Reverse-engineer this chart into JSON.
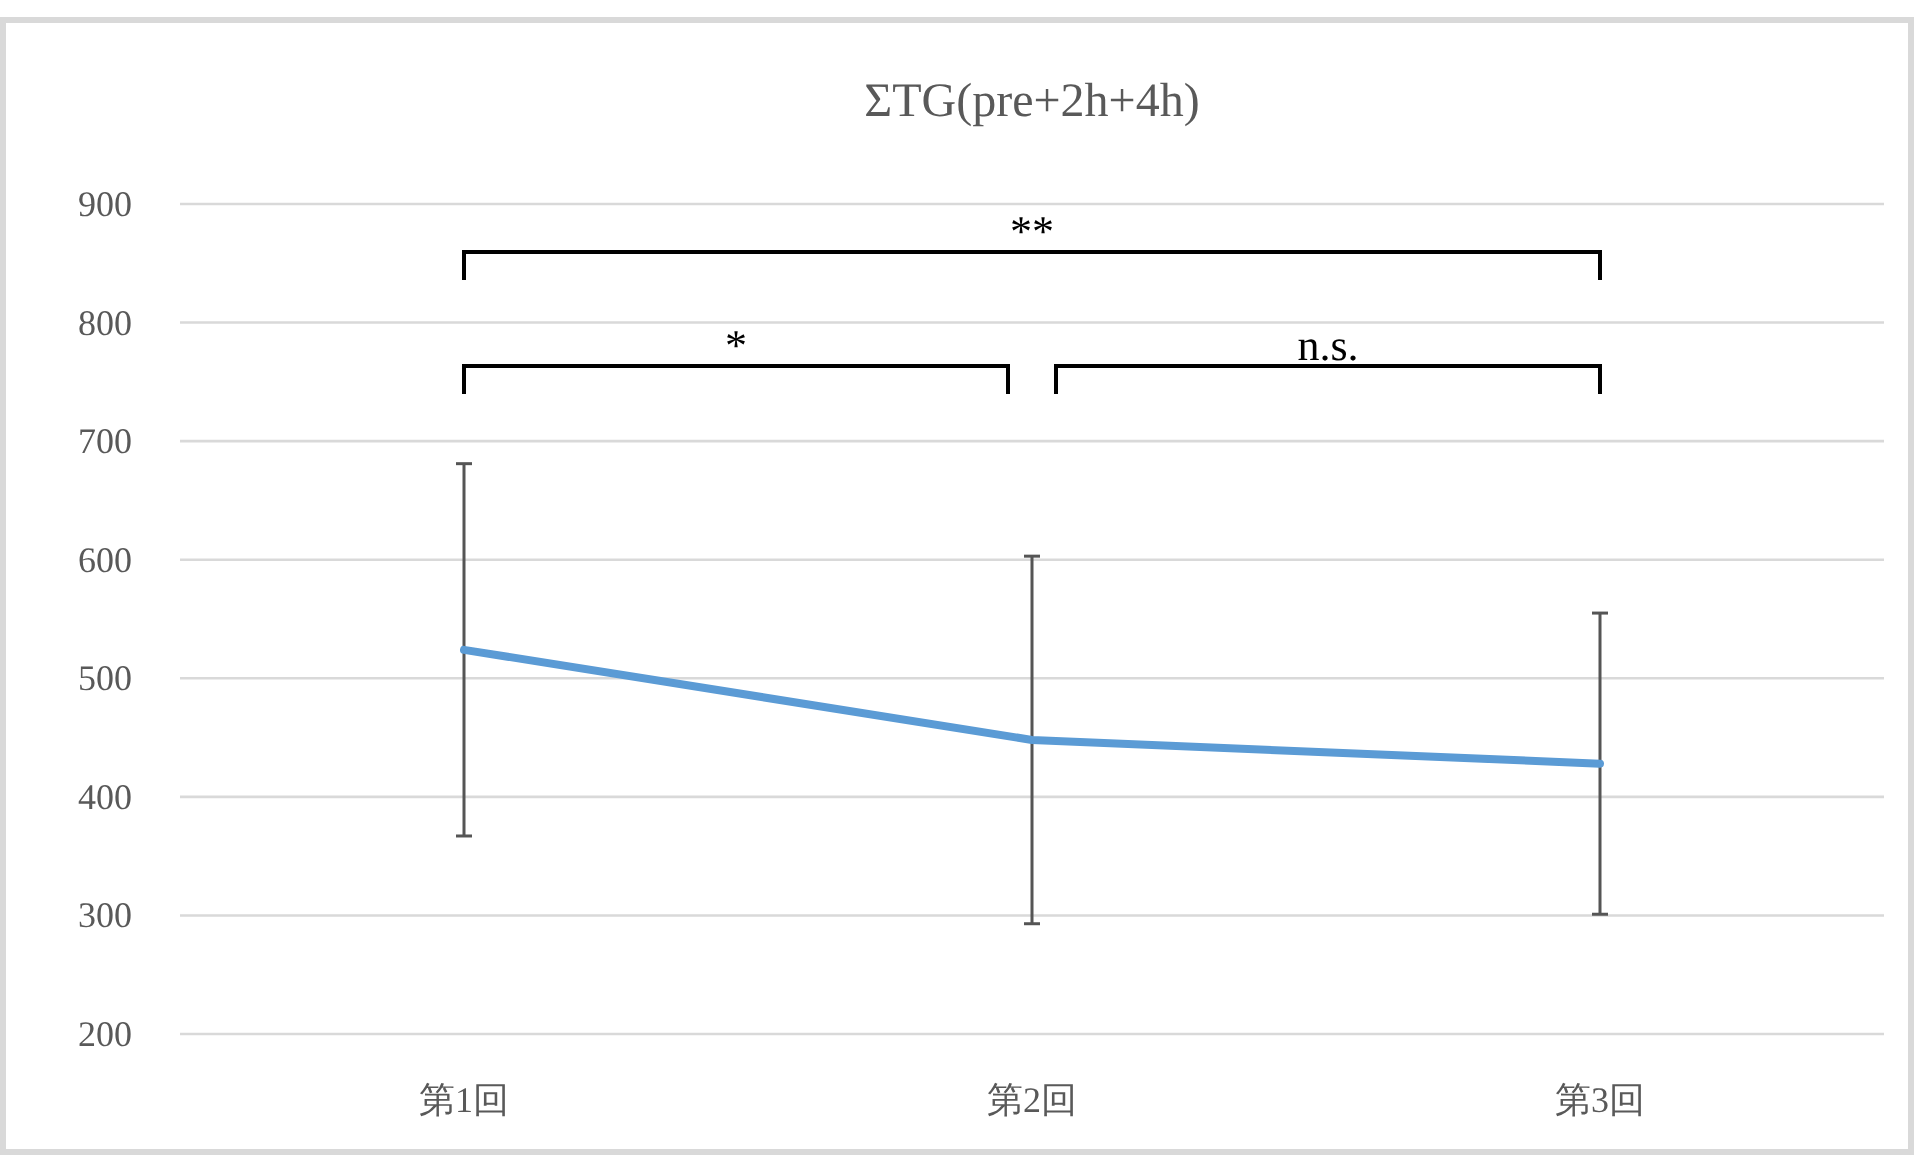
{
  "chart_data": {
    "type": "line",
    "title": "ΣTG(pre+2h+4h)",
    "categories": [
      "第1回",
      "第2回",
      "第3回"
    ],
    "series": [
      {
        "color": "#5b9bd5",
        "values": [
          524,
          448,
          428
        ],
        "errors": [
          157,
          155,
          127
        ]
      }
    ],
    "ylim": [
      200,
      900
    ],
    "yticks": [
      200,
      300,
      400,
      500,
      600,
      700,
      800,
      900
    ],
    "grid": "y",
    "marker": "none",
    "line_style": "solid",
    "annotations": [
      "**",
      "*",
      "n.s."
    ]
  }
}
